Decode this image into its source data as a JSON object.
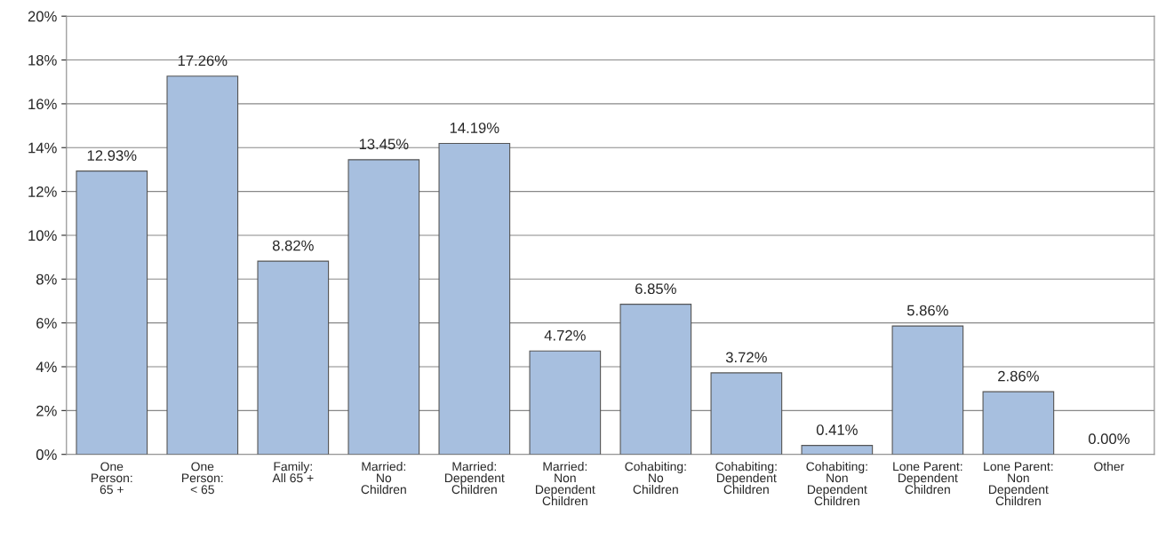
{
  "chart_data": {
    "type": "bar",
    "categories": [
      "One\nPerson:\n65 +",
      "One\nPerson:\n< 65",
      "Family:\nAll 65 +",
      "Married:\nNo\nChildren",
      "Married:\nDependent\nChildren",
      "Married:\nNon\nDependent\nChildren",
      "Cohabiting:\nNo\nChildren",
      "Cohabiting:\nDependent\nChildren",
      "Cohabiting:\nNon\nDependent\nChildren",
      "Lone Parent:\nDependent\nChildren",
      "Lone Parent:\nNon\nDependent\nChildren",
      "Other"
    ],
    "values": [
      12.93,
      17.26,
      8.82,
      13.45,
      14.19,
      4.72,
      6.85,
      3.72,
      0.41,
      5.86,
      2.86,
      0.0
    ],
    "value_labels": [
      "12.93%",
      "17.26%",
      "8.82%",
      "13.45%",
      "14.19%",
      "4.72%",
      "6.85%",
      "3.72%",
      "0.41%",
      "5.86%",
      "2.86%",
      "0.00%"
    ],
    "color": "#a7bfdf",
    "ylim": [
      0,
      20
    ],
    "yticks": [
      {
        "value": 0,
        "label": "0%"
      },
      {
        "value": 2,
        "label": "2%"
      },
      {
        "value": 4,
        "label": "4%"
      },
      {
        "value": 6,
        "label": "6%"
      },
      {
        "value": 8,
        "label": "8%"
      },
      {
        "value": 10,
        "label": "10%"
      },
      {
        "value": 12,
        "label": "12%"
      },
      {
        "value": 14,
        "label": "14%"
      },
      {
        "value": 16,
        "label": "16%"
      },
      {
        "value": 18,
        "label": "18%"
      },
      {
        "value": 20,
        "label": "20%"
      }
    ],
    "grid": "y",
    "legend": false
  }
}
